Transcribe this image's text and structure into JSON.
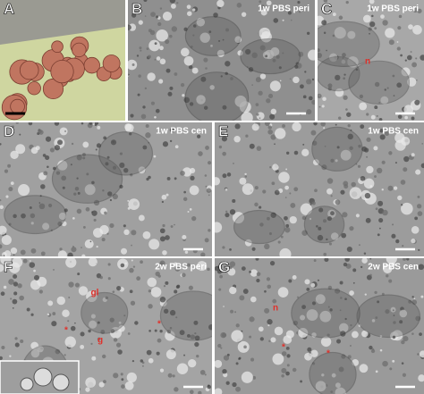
{
  "panels": [
    {
      "label": "A"
    },
    {
      "label": "B",
      "caption": "1w PBS peri"
    },
    {
      "label": "C",
      "caption": "1w PBS peri",
      "annotations": [
        "n"
      ]
    },
    {
      "label": "D",
      "caption": "1w PBS cen"
    },
    {
      "label": "E",
      "caption": "1w PBS cen"
    },
    {
      "label": "F",
      "caption": "2w PBS peri",
      "annotations": [
        "gl",
        "*",
        "g",
        "*"
      ]
    },
    {
      "label": "G",
      "caption": "2w PBS cen",
      "annotations": [
        "n",
        "*",
        "*"
      ]
    }
  ]
}
